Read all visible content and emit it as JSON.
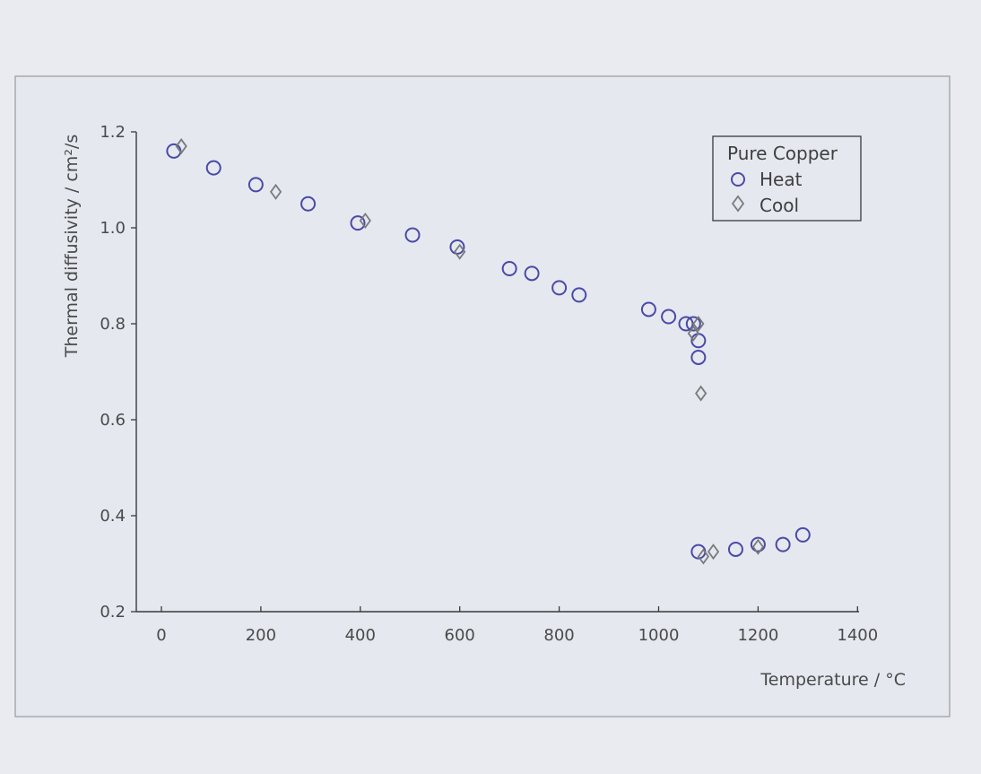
{
  "chart_data": {
    "type": "scatter",
    "title": "",
    "xlabel": "Temperature / °C",
    "ylabel": "Thermal diffusivity / cm²/s",
    "xlim": [
      -50,
      1400
    ],
    "ylim": [
      0.2,
      1.2
    ],
    "xticks": [
      0,
      200,
      400,
      600,
      800,
      1000,
      1200,
      1400
    ],
    "yticks": [
      0.2,
      0.4,
      0.6,
      0.8,
      1.0,
      1.2
    ],
    "grid": false,
    "legend": {
      "title": "Pure Copper",
      "position": "top-right"
    },
    "colors": {
      "heat": "#4a4aa8",
      "cool": "#7a7a7a",
      "axis": "#3a3a3a"
    },
    "series": [
      {
        "name": "Heat",
        "marker": "circle",
        "x": [
          25,
          105,
          190,
          295,
          395,
          505,
          595,
          700,
          745,
          800,
          840,
          980,
          1020,
          1055,
          1070,
          1080,
          1080,
          1080,
          1155,
          1200,
          1250,
          1290
        ],
        "y": [
          1.16,
          1.125,
          1.09,
          1.05,
          1.01,
          0.985,
          0.96,
          0.915,
          0.905,
          0.875,
          0.86,
          0.83,
          0.815,
          0.8,
          0.8,
          0.765,
          0.73,
          0.325,
          0.33,
          0.34,
          0.34,
          0.36
        ]
      },
      {
        "name": "Cool",
        "marker": "diamond",
        "x": [
          40,
          230,
          410,
          600,
          1070,
          1080,
          1085,
          1090,
          1110,
          1200
        ],
        "y": [
          1.17,
          1.075,
          1.015,
          0.95,
          0.78,
          0.8,
          0.655,
          0.315,
          0.325,
          0.335
        ]
      }
    ]
  }
}
